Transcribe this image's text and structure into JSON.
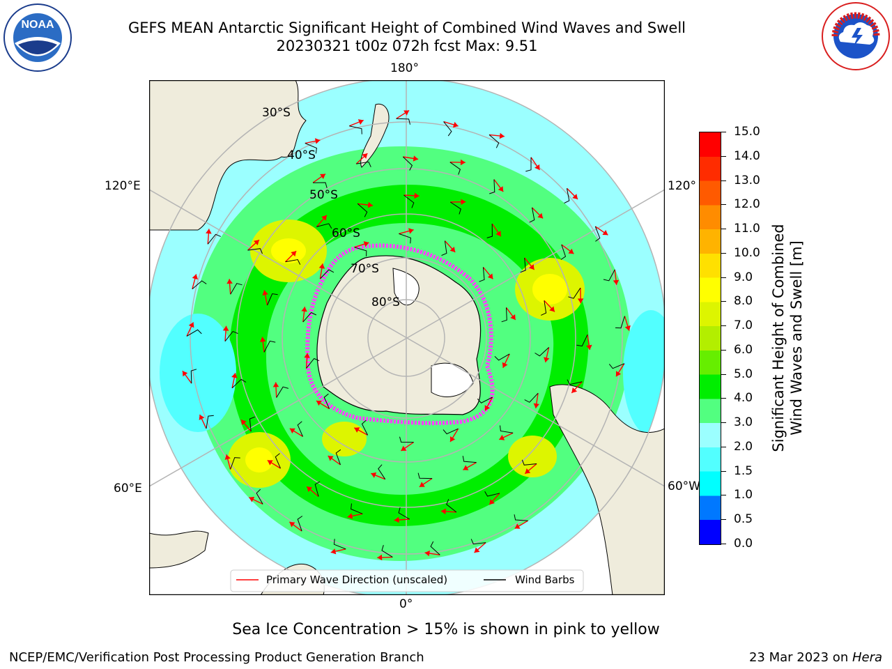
{
  "header": {
    "title_line1": "GEFS MEAN Antarctic Significant Height of Combined Wind Waves and Swell",
    "title_line2": "20230321 t00z 072h fcst   Max: 9.51",
    "noaa_logo_text": "NOAA",
    "noaa_logo_ring_text": "NATIONAL OCEANIC AND ATMOSPHERIC ADMINISTRATION",
    "noaa_logo_ring_text_bottom": "U.S. DEPARTMENT OF COMMERCE",
    "nws_logo_text": "NATIONAL WEATHER SERVICE"
  },
  "map": {
    "projection": "south polar stereographic",
    "lon_labels": {
      "top": "180°",
      "left_upper": "120°E",
      "right_upper": "120°",
      "left_lower": "60°E",
      "right_lower": "60°W",
      "bottom": "0°"
    },
    "lat_labels": [
      "30°S",
      "40°S",
      "50°S",
      "60°S",
      "70°S",
      "80°S"
    ],
    "legend": {
      "wave_direction": "Primary Wave Direction (unscaled)",
      "wind_barbs": "Wind Barbs",
      "wave_direction_color": "#ff0000",
      "wind_barbs_color": "#000000"
    },
    "land_color": "#efecdc",
    "ice_shelf_color": "#ffffff"
  },
  "colorbar": {
    "label_line1": "Significant Height of Combined",
    "label_line2": "Wind Waves and Swell [m]",
    "ticks": [
      "15.0",
      "14.0",
      "13.0",
      "12.0",
      "11.0",
      "10.0",
      "9.0",
      "8.0",
      "7.0",
      "6.0",
      "5.0",
      "4.0",
      "3.0",
      "2.0",
      "1.5",
      "1.0",
      "0.5",
      "0.0"
    ],
    "colors": [
      "#0000ff",
      "#0078ff",
      "#00ffff",
      "#52ffff",
      "#9bffff",
      "#52ff80",
      "#00ee00",
      "#66ee00",
      "#b3ee00",
      "#ddf500",
      "#ffff00",
      "#ffe000",
      "#ffb300",
      "#ff8c00",
      "#ff5a00",
      "#ff2c00",
      "#ff0000"
    ]
  },
  "subtitle": "Sea Ice Concentration > 15% is shown in pink to yellow",
  "footer": {
    "left": "NCEP/EMC/Verification Post Processing Product Generation Branch",
    "right_date": "23 Mar 2023 on ",
    "right_system": "Hera"
  }
}
